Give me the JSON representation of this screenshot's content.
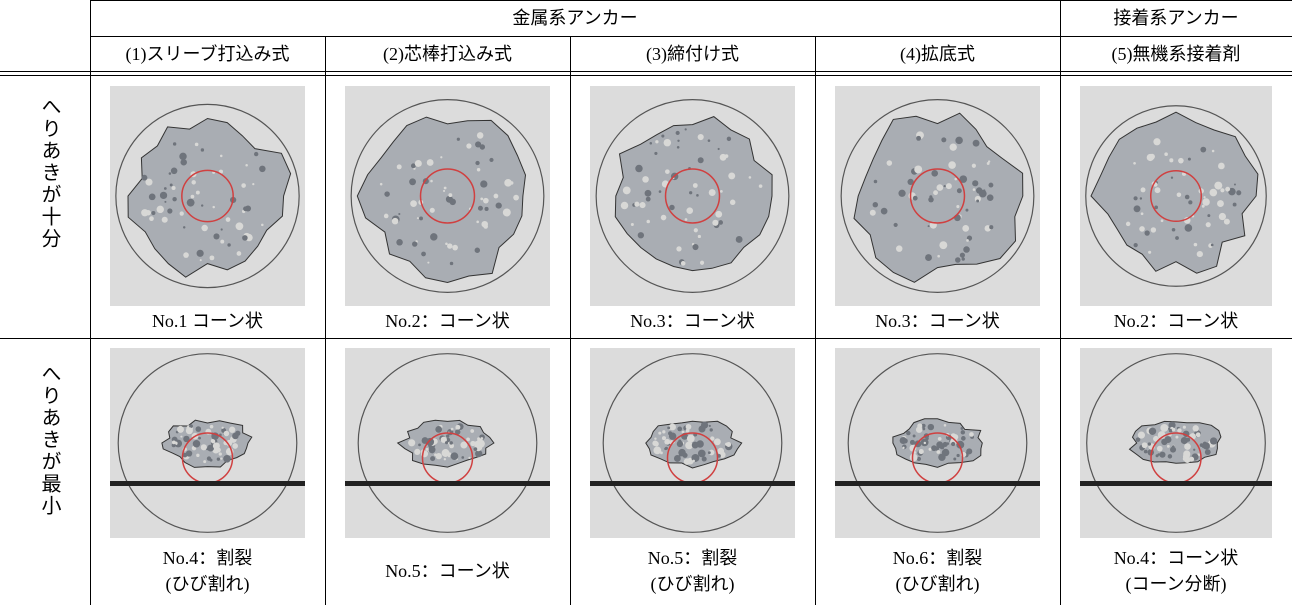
{
  "header": {
    "group_labels": [
      "金属系アンカー",
      "接着系アンカー"
    ],
    "columns": [
      "(1)スリーブ打込み式",
      "(2)芯棒打込み式",
      "(3)締付け式",
      "(4)拡底式",
      "(5)無機系接着剤"
    ]
  },
  "rows": [
    {
      "label": "へりあきが十分",
      "captions": [
        [
          "No.1 コーン状"
        ],
        [
          "No.2：コーン状"
        ],
        [
          "No.3：コーン状"
        ],
        [
          "No.3：コーン状"
        ],
        [
          "No.2：コーン状"
        ]
      ]
    },
    {
      "label": "へりあきが最小",
      "captions": [
        [
          "No.4：割裂",
          "(ひび割れ)"
        ],
        [
          "No.5：コーン状"
        ],
        [
          "No.5：割裂",
          "(ひび割れ)"
        ],
        [
          "No.6：割裂",
          "(ひび割れ)"
        ],
        [
          "No.4：コーン状",
          "(コーン分断)"
        ]
      ]
    }
  ]
}
